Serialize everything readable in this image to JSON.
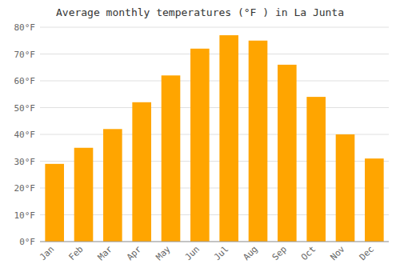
{
  "chart_data": {
    "type": "bar",
    "title": "Average monthly temperatures (°F ) in La Junta",
    "categories": [
      "Jan",
      "Feb",
      "Mar",
      "Apr",
      "May",
      "Jun",
      "Jul",
      "Aug",
      "Sep",
      "Oct",
      "Nov",
      "Dec"
    ],
    "values": [
      29,
      35,
      42,
      52,
      62,
      72,
      77,
      75,
      66,
      54,
      40,
      31
    ],
    "color": "#FFA500",
    "ylim": [
      0,
      80
    ],
    "yticks": [
      {
        "value": 0,
        "label": "0°F"
      },
      {
        "value": 10,
        "label": "10°F"
      },
      {
        "value": 20,
        "label": "20°F"
      },
      {
        "value": 30,
        "label": "30°F"
      },
      {
        "value": 40,
        "label": "40°F"
      },
      {
        "value": 50,
        "label": "50°F"
      },
      {
        "value": 60,
        "label": "60°F"
      },
      {
        "value": 70,
        "label": "70°F"
      },
      {
        "value": 80,
        "label": "80°F"
      }
    ],
    "grid": true
  }
}
